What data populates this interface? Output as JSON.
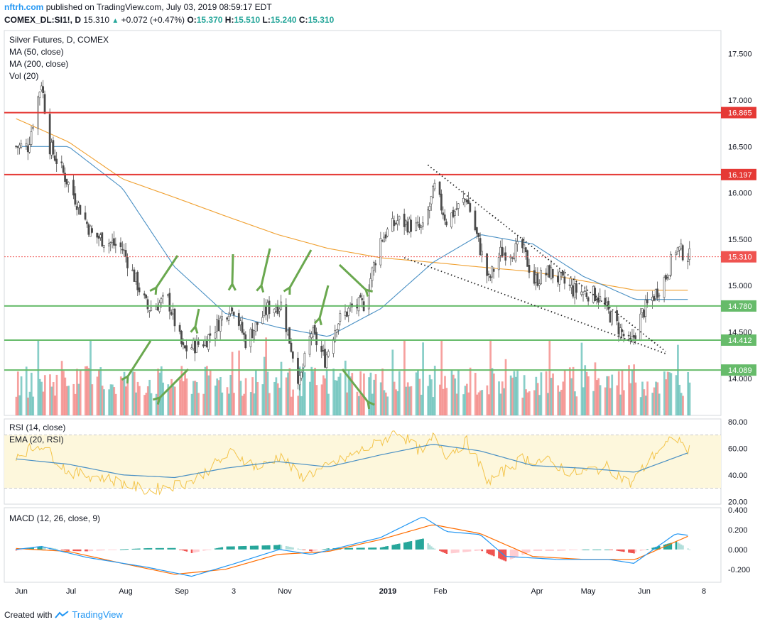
{
  "header": {
    "site": "nftrh.com",
    "published": "published on TradingView.com, July 03, 2019 08:59:17 EDT",
    "symbol": "COMEX_DL:SI1!, D",
    "last": "15.310",
    "change": "+0.072 (+0.47%)",
    "ohlc": {
      "o_label": "O:",
      "o": "15.370",
      "h_label": "H:",
      "h": "15.510",
      "l_label": "L:",
      "l": "15.240",
      "c_label": "C:",
      "c": "15.310"
    }
  },
  "footer": {
    "created": "Created with",
    "brand": "TradingView"
  },
  "colors": {
    "up": "#26a69a",
    "down": "#ef5350",
    "ma50": "#4a90c4",
    "ma200": "#f0a030",
    "hline_red": "#e53935",
    "hline_green": "#66bb6a",
    "annot_arrow": "#6aa84f",
    "rsi": "#f3c44a",
    "rsi_ema": "#4a90c4",
    "macd": "#2196f3",
    "signal": "#ff6d00"
  },
  "chart_data": [
    {
      "type": "candlestick",
      "title": "Silver Futures, D, COMEX",
      "legend": [
        "MA (50, close)",
        "MA (200, close)",
        "Vol (20)"
      ],
      "ylim": [
        13.6,
        17.75
      ],
      "y_ticks": [
        "17.500",
        "17.000",
        "16.500",
        "16.000",
        "15.500",
        "15.000",
        "14.500",
        "14.000"
      ],
      "x_ticks": [
        "Jun",
        "Jul",
        "Aug",
        "Sep",
        "3",
        "Nov",
        "2019",
        "Feb",
        "Apr",
        "May",
        "Jun",
        "8"
      ],
      "price_anchors": [
        [
          "2018-05-29",
          16.5
        ],
        [
          "2018-06-05",
          16.5
        ],
        [
          "2018-06-13",
          17.2
        ],
        [
          "2018-06-18",
          16.5
        ],
        [
          "2018-06-29",
          16.1
        ],
        [
          "2018-07-13",
          15.55
        ],
        [
          "2018-07-31",
          15.4
        ],
        [
          "2018-08-15",
          14.75
        ],
        [
          "2018-08-27",
          14.85
        ],
        [
          "2018-09-05",
          14.3
        ],
        [
          "2018-09-18",
          14.4
        ],
        [
          "2018-10-04",
          14.8
        ],
        [
          "2018-10-12",
          14.4
        ],
        [
          "2018-10-25",
          14.75
        ],
        [
          "2018-11-02",
          14.8
        ],
        [
          "2018-11-13",
          13.95
        ],
        [
          "2018-11-20",
          14.5
        ],
        [
          "2018-11-28",
          14.2
        ],
        [
          "2018-12-05",
          14.6
        ],
        [
          "2018-12-13",
          14.75
        ],
        [
          "2018-12-21",
          14.8
        ],
        [
          "2018-12-31",
          15.5
        ],
        [
          "2019-01-10",
          15.7
        ],
        [
          "2019-01-25",
          15.6
        ],
        [
          "2019-02-01",
          16.05
        ],
        [
          "2019-02-08",
          15.7
        ],
        [
          "2019-02-20",
          15.95
        ],
        [
          "2019-03-05",
          15.05
        ],
        [
          "2019-03-12",
          15.35
        ],
        [
          "2019-03-25",
          15.4
        ],
        [
          "2019-04-01",
          15.05
        ],
        [
          "2019-04-10",
          15.15
        ],
        [
          "2019-04-24",
          14.95
        ],
        [
          "2019-05-08",
          14.9
        ],
        [
          "2019-05-28",
          14.35
        ],
        [
          "2019-06-04",
          14.7
        ],
        [
          "2019-06-13",
          14.95
        ],
        [
          "2019-06-18",
          15.1
        ],
        [
          "2019-06-24",
          15.4
        ],
        [
          "2019-07-02",
          15.31
        ]
      ],
      "ma50_anchors": [
        [
          "2018-05-29",
          16.5
        ],
        [
          "2018-06-29",
          16.5
        ],
        [
          "2018-07-31",
          16.05
        ],
        [
          "2018-08-31",
          15.2
        ],
        [
          "2018-09-30",
          14.7
        ],
        [
          "2018-10-31",
          14.55
        ],
        [
          "2018-11-30",
          14.45
        ],
        [
          "2018-12-31",
          14.75
        ],
        [
          "2019-01-31",
          15.25
        ],
        [
          "2019-02-28",
          15.55
        ],
        [
          "2019-03-31",
          15.45
        ],
        [
          "2019-04-30",
          15.1
        ],
        [
          "2019-05-31",
          14.85
        ],
        [
          "2019-07-02",
          14.85
        ]
      ],
      "ma200_anchors": [
        [
          "2018-05-29",
          16.8
        ],
        [
          "2018-06-29",
          16.55
        ],
        [
          "2018-07-31",
          16.15
        ],
        [
          "2018-08-31",
          15.95
        ],
        [
          "2018-09-30",
          15.75
        ],
        [
          "2018-10-31",
          15.55
        ],
        [
          "2018-11-30",
          15.4
        ],
        [
          "2018-12-31",
          15.3
        ],
        [
          "2019-01-31",
          15.25
        ],
        [
          "2019-02-28",
          15.2
        ],
        [
          "2019-03-31",
          15.15
        ],
        [
          "2019-04-30",
          15.05
        ],
        [
          "2019-05-31",
          14.95
        ],
        [
          "2019-07-02",
          14.95
        ]
      ],
      "horizontal_levels": [
        {
          "value": 16.865,
          "label": "16.865",
          "color": "#e53935"
        },
        {
          "value": 16.197,
          "label": "16.197",
          "color": "#e53935"
        },
        {
          "value": 14.78,
          "label": "14.780",
          "color": "#66bb6a"
        },
        {
          "value": 14.412,
          "label": "14.412",
          "color": "#66bb6a"
        },
        {
          "value": 14.089,
          "label": "14.089",
          "color": "#66bb6a"
        }
      ],
      "last_price": {
        "value": 15.31,
        "label": "15.310"
      },
      "trendlines": [
        {
          "from": [
            "2019-01-28",
            16.3
          ],
          "to": [
            "2019-05-30",
            14.35
          ]
        },
        {
          "from": [
            "2019-01-14",
            15.3
          ],
          "to": [
            "2019-05-30",
            14.25
          ]
        }
      ],
      "annotation_arrows_note": "green arrows point to support tests near 14.4–14.8"
    },
    {
      "type": "line",
      "title": "RSI (14, close)",
      "legend": [
        "RSI (14, close)",
        "EMA (20, RSI)"
      ],
      "ylim": [
        18,
        82
      ],
      "y_ticks": [
        "80.00",
        "60.00",
        "40.00",
        "20.00"
      ],
      "bands": [
        30,
        70
      ],
      "rsi_anchors": [
        [
          "2018-05-29",
          55
        ],
        [
          "2018-06-13",
          63
        ],
        [
          "2018-06-29",
          42
        ],
        [
          "2018-07-20",
          38
        ],
        [
          "2018-08-15",
          28
        ],
        [
          "2018-09-10",
          35
        ],
        [
          "2018-10-04",
          57
        ],
        [
          "2018-10-20",
          45
        ],
        [
          "2018-11-02",
          55
        ],
        [
          "2018-11-13",
          38
        ],
        [
          "2018-11-28",
          45
        ],
        [
          "2018-12-31",
          65
        ],
        [
          "2019-01-10",
          73
        ],
        [
          "2019-01-25",
          56
        ],
        [
          "2019-02-01",
          70
        ],
        [
          "2019-02-08",
          55
        ],
        [
          "2019-02-20",
          65
        ],
        [
          "2019-03-05",
          35
        ],
        [
          "2019-03-25",
          52
        ],
        [
          "2019-04-10",
          50
        ],
        [
          "2019-04-24",
          41
        ],
        [
          "2019-05-15",
          46
        ],
        [
          "2019-05-28",
          33
        ],
        [
          "2019-06-13",
          58
        ],
        [
          "2019-06-24",
          68
        ],
        [
          "2019-07-02",
          58
        ]
      ],
      "ema_anchors": [
        [
          "2018-05-29",
          52
        ],
        [
          "2018-06-29",
          48
        ],
        [
          "2018-07-31",
          40
        ],
        [
          "2018-08-31",
          38
        ],
        [
          "2018-09-30",
          45
        ],
        [
          "2018-10-31",
          50
        ],
        [
          "2018-11-30",
          46
        ],
        [
          "2018-12-31",
          55
        ],
        [
          "2019-01-31",
          63
        ],
        [
          "2019-02-28",
          58
        ],
        [
          "2019-03-31",
          47
        ],
        [
          "2019-04-30",
          45
        ],
        [
          "2019-05-31",
          42
        ],
        [
          "2019-07-02",
          57
        ]
      ]
    },
    {
      "type": "line",
      "title": "MACD (12, 26, close, 9)",
      "ylim": [
        -0.33,
        0.42
      ],
      "y_ticks": [
        "0.400",
        "0.200",
        "0.000",
        "-0.200"
      ],
      "macd_anchors": [
        [
          "2018-05-29",
          0.0
        ],
        [
          "2018-06-13",
          0.03
        ],
        [
          "2018-07-10",
          -0.08
        ],
        [
          "2018-08-15",
          -0.18
        ],
        [
          "2018-09-10",
          -0.27
        ],
        [
          "2018-10-04",
          -0.15
        ],
        [
          "2018-11-01",
          0.0
        ],
        [
          "2018-11-20",
          -0.05
        ],
        [
          "2018-12-31",
          0.12
        ],
        [
          "2019-01-25",
          0.33
        ],
        [
          "2019-02-08",
          0.18
        ],
        [
          "2019-02-28",
          0.15
        ],
        [
          "2019-03-15",
          -0.07
        ],
        [
          "2019-04-15",
          -0.1
        ],
        [
          "2019-05-15",
          -0.1
        ],
        [
          "2019-05-30",
          -0.14
        ],
        [
          "2019-06-24",
          0.16
        ],
        [
          "2019-07-02",
          0.14
        ]
      ],
      "signal_anchors": [
        [
          "2018-05-29",
          0.01
        ],
        [
          "2018-06-29",
          -0.02
        ],
        [
          "2018-07-31",
          -0.14
        ],
        [
          "2018-08-31",
          -0.25
        ],
        [
          "2018-09-30",
          -0.2
        ],
        [
          "2018-10-31",
          -0.05
        ],
        [
          "2018-11-30",
          -0.02
        ],
        [
          "2018-12-31",
          0.1
        ],
        [
          "2019-01-31",
          0.25
        ],
        [
          "2019-02-28",
          0.16
        ],
        [
          "2019-03-31",
          -0.07
        ],
        [
          "2019-04-30",
          -0.1
        ],
        [
          "2019-05-31",
          -0.1
        ],
        [
          "2019-07-02",
          0.14
        ]
      ]
    }
  ]
}
